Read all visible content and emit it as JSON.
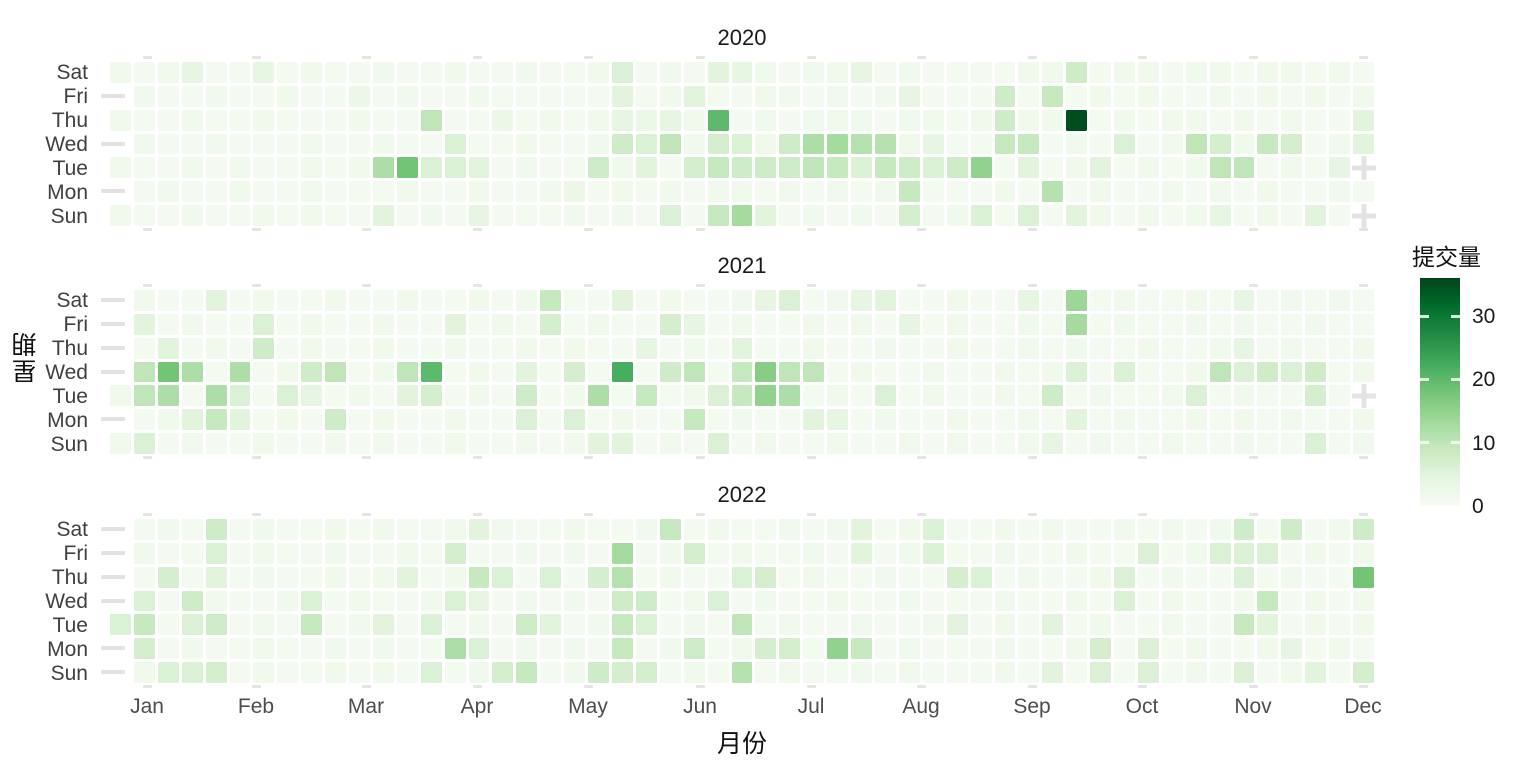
{
  "figure": {
    "y_axis_title": "星期",
    "x_axis_title": "月份",
    "weekday_labels": [
      "Sat",
      "Fri",
      "Thu",
      "Wed",
      "Tue",
      "Mon",
      "Sun"
    ],
    "month_labels": [
      "Jan",
      "Feb",
      "Mar",
      "Apr",
      "May",
      "Jun",
      "Jul",
      "Aug",
      "Sep",
      "Oct",
      "Nov",
      "Dec"
    ],
    "legend": {
      "title": "提交量",
      "tick_values": [
        30,
        20,
        10,
        0
      ],
      "tick_labels": [
        "30",
        "20",
        "10",
        "0"
      ],
      "domain_min": 0,
      "domain_max": 36,
      "palette": [
        "#f7fcf5",
        "#e5f5e0",
        "#c7e9c0",
        "#a1d99b",
        "#74c476",
        "#41ab5d",
        "#238b45",
        "#006d2c",
        "#00441b"
      ]
    }
  },
  "chart_data": {
    "type": "heatmap",
    "facet_titles": [
      "2020",
      "2021",
      "2022"
    ],
    "rows": [
      "Sat",
      "Fri",
      "Thu",
      "Wed",
      "Tue",
      "Mon",
      "Sun"
    ],
    "columns": "weeks 1-53 of each year",
    "xlabel": "月份",
    "ylabel": "星期",
    "colorbar": {
      "title": "提交量",
      "range": [
        0,
        36
      ],
      "ticks": [
        0,
        10,
        20,
        30
      ]
    },
    "missing_marker": "+",
    "series": [
      {
        "name": "2020",
        "values": [
          [
            2,
            1,
            2,
            4,
            1,
            1,
            4,
            1,
            2,
            1,
            1,
            2,
            1,
            1,
            2,
            1,
            1,
            2,
            1,
            1,
            2,
            6,
            1,
            2,
            1,
            5,
            4,
            2,
            1,
            2,
            2,
            4,
            1,
            2,
            1,
            1,
            1,
            1,
            2,
            2,
            8,
            1,
            2,
            2,
            1,
            2,
            2,
            1,
            2,
            2,
            1,
            2,
            1
          ],
          [
            null,
            2,
            1,
            1,
            2,
            1,
            1,
            2,
            1,
            1,
            3,
            1,
            2,
            1,
            1,
            2,
            1,
            1,
            1,
            1,
            1,
            5,
            1,
            2,
            5,
            1,
            1,
            2,
            2,
            1,
            2,
            1,
            2,
            4,
            1,
            1,
            1,
            8,
            1,
            9,
            1,
            2,
            1,
            2,
            1,
            1,
            2,
            1,
            2,
            1,
            2,
            1,
            2
          ],
          [
            2,
            1,
            1,
            2,
            1,
            1,
            2,
            1,
            1,
            1,
            2,
            1,
            1,
            10,
            1,
            1,
            3,
            1,
            2,
            1,
            2,
            4,
            3,
            4,
            2,
            20,
            1,
            2,
            1,
            2,
            2,
            2,
            1,
            2,
            2,
            1,
            2,
            8,
            2,
            2,
            35,
            1,
            2,
            1,
            2,
            2,
            1,
            2,
            1,
            2,
            1,
            1,
            5
          ],
          [
            null,
            2,
            1,
            1,
            2,
            1,
            1,
            1,
            2,
            1,
            1,
            2,
            1,
            1,
            6,
            1,
            1,
            2,
            1,
            1,
            2,
            8,
            6,
            10,
            2,
            7,
            6,
            2,
            8,
            12,
            13,
            11,
            11,
            2,
            4,
            1,
            1,
            9,
            9,
            1,
            2,
            1,
            6,
            1,
            2,
            10,
            7,
            2,
            9,
            7,
            1,
            2,
            5
          ],
          [
            2,
            1,
            1,
            2,
            1,
            2,
            1,
            1,
            2,
            1,
            2,
            12,
            18,
            6,
            6,
            5,
            1,
            2,
            1,
            1,
            8,
            2,
            5,
            1,
            7,
            9,
            8,
            8,
            8,
            10,
            9,
            6,
            9,
            8,
            6,
            8,
            15,
            1,
            5,
            1,
            2,
            5,
            1,
            2,
            1,
            2,
            10,
            10,
            1,
            2,
            1,
            4,
            null
          ],
          [
            null,
            1,
            2,
            1,
            1,
            2,
            1,
            1,
            2,
            1,
            1,
            1,
            2,
            1,
            1,
            2,
            1,
            1,
            2,
            3,
            1,
            2,
            1,
            2,
            1,
            2,
            2,
            1,
            2,
            1,
            2,
            1,
            2,
            9,
            1,
            1,
            1,
            2,
            1,
            11,
            1,
            2,
            1,
            1,
            2,
            1,
            2,
            1,
            2,
            1,
            1,
            2,
            1
          ],
          [
            2,
            1,
            1,
            2,
            1,
            1,
            2,
            1,
            2,
            1,
            1,
            5,
            1,
            2,
            1,
            4,
            1,
            1,
            1,
            2,
            1,
            2,
            1,
            6,
            1,
            9,
            13,
            5,
            1,
            2,
            1,
            2,
            1,
            7,
            1,
            2,
            6,
            1,
            6,
            1,
            5,
            2,
            1,
            2,
            1,
            2,
            4,
            1,
            2,
            1,
            5,
            1,
            null
          ]
        ]
      },
      {
        "name": "2021",
        "values": [
          [
            null,
            2,
            1,
            1,
            5,
            1,
            2,
            1,
            1,
            2,
            1,
            1,
            2,
            1,
            1,
            2,
            1,
            2,
            9,
            1,
            1,
            5,
            1,
            2,
            1,
            1,
            2,
            4,
            6,
            1,
            2,
            4,
            5,
            1,
            1,
            2,
            1,
            1,
            4,
            1,
            14,
            1,
            2,
            1,
            1,
            2,
            1,
            4,
            1,
            2,
            1,
            2,
            1
          ],
          [
            null,
            5,
            1,
            2,
            1,
            1,
            6,
            1,
            2,
            1,
            1,
            2,
            1,
            1,
            5,
            1,
            2,
            1,
            7,
            1,
            2,
            1,
            1,
            7,
            4,
            1,
            2,
            1,
            1,
            2,
            1,
            2,
            1,
            4,
            1,
            2,
            1,
            1,
            2,
            1,
            13,
            1,
            2,
            1,
            1,
            2,
            1,
            2,
            1,
            1,
            2,
            1,
            1
          ],
          [
            null,
            1,
            5,
            1,
            2,
            1,
            8,
            1,
            2,
            1,
            1,
            2,
            1,
            1,
            2,
            1,
            1,
            2,
            1,
            2,
            1,
            1,
            4,
            1,
            2,
            1,
            5,
            1,
            1,
            2,
            1,
            1,
            2,
            1,
            1,
            2,
            1,
            1,
            2,
            1,
            2,
            1,
            1,
            2,
            1,
            1,
            2,
            4,
            1,
            2,
            1,
            1,
            2
          ],
          [
            null,
            10,
            18,
            12,
            1,
            12,
            1,
            2,
            8,
            10,
            1,
            2,
            10,
            20,
            1,
            2,
            1,
            5,
            1,
            7,
            1,
            22,
            1,
            8,
            10,
            1,
            9,
            16,
            10,
            10,
            1,
            2,
            1,
            1,
            2,
            1,
            1,
            2,
            1,
            2,
            6,
            1,
            6,
            1,
            1,
            2,
            10,
            6,
            8,
            6,
            8,
            1,
            2
          ],
          [
            2,
            10,
            12,
            1,
            12,
            6,
            1,
            6,
            4,
            1,
            2,
            1,
            5,
            7,
            1,
            2,
            1,
            8,
            1,
            2,
            12,
            1,
            9,
            1,
            2,
            6,
            9,
            15,
            12,
            1,
            2,
            1,
            6,
            1,
            2,
            1,
            1,
            2,
            1,
            8,
            1,
            2,
            1,
            1,
            2,
            6,
            1,
            2,
            1,
            1,
            7,
            1,
            null
          ],
          [
            null,
            1,
            2,
            5,
            9,
            5,
            1,
            2,
            1,
            8,
            1,
            2,
            1,
            1,
            2,
            1,
            1,
            6,
            1,
            6,
            1,
            2,
            1,
            1,
            9,
            1,
            2,
            1,
            1,
            5,
            4,
            1,
            2,
            1,
            1,
            2,
            1,
            1,
            2,
            1,
            5,
            1,
            2,
            1,
            1,
            2,
            1,
            2,
            1,
            2,
            1,
            1,
            2
          ],
          [
            2,
            6,
            1,
            2,
            1,
            1,
            2,
            1,
            1,
            2,
            1,
            2,
            1,
            1,
            2,
            1,
            1,
            2,
            1,
            2,
            5,
            5,
            1,
            2,
            1,
            6,
            1,
            2,
            1,
            1,
            2,
            1,
            1,
            2,
            1,
            2,
            1,
            1,
            2,
            4,
            1,
            2,
            1,
            1,
            2,
            1,
            1,
            2,
            1,
            1,
            6,
            1,
            2
          ]
        ]
      },
      {
        "name": "2022",
        "values": [
          [
            null,
            1,
            2,
            1,
            8,
            1,
            2,
            1,
            1,
            2,
            1,
            2,
            1,
            1,
            2,
            5,
            2,
            1,
            1,
            2,
            1,
            1,
            2,
            9,
            1,
            2,
            1,
            1,
            2,
            1,
            2,
            5,
            1,
            2,
            6,
            1,
            1,
            2,
            1,
            2,
            1,
            1,
            2,
            1,
            2,
            1,
            2,
            8,
            1,
            8,
            1,
            2,
            8
          ],
          [
            null,
            2,
            1,
            1,
            6,
            1,
            2,
            1,
            1,
            2,
            1,
            1,
            2,
            1,
            7,
            1,
            1,
            2,
            1,
            2,
            1,
            13,
            1,
            2,
            7,
            1,
            2,
            1,
            1,
            2,
            1,
            5,
            1,
            2,
            6,
            1,
            1,
            2,
            1,
            1,
            2,
            1,
            1,
            6,
            1,
            2,
            6,
            6,
            6,
            1,
            2,
            1,
            2
          ],
          [
            null,
            1,
            7,
            1,
            5,
            1,
            2,
            1,
            1,
            2,
            1,
            2,
            5,
            1,
            2,
            9,
            6,
            1,
            6,
            1,
            7,
            11,
            1,
            2,
            1,
            1,
            6,
            7,
            1,
            2,
            1,
            1,
            2,
            1,
            1,
            7,
            6,
            1,
            2,
            1,
            1,
            2,
            6,
            1,
            2,
            1,
            1,
            6,
            1,
            2,
            1,
            1,
            18
          ],
          [
            null,
            6,
            1,
            8,
            2,
            1,
            1,
            2,
            6,
            1,
            2,
            1,
            1,
            2,
            6,
            4,
            1,
            2,
            1,
            2,
            1,
            8,
            8,
            1,
            2,
            6,
            1,
            2,
            1,
            1,
            2,
            1,
            1,
            2,
            1,
            1,
            1,
            2,
            1,
            1,
            2,
            1,
            6,
            1,
            2,
            1,
            1,
            2,
            9,
            1,
            2,
            1,
            2
          ],
          [
            6,
            9,
            1,
            6,
            8,
            1,
            2,
            1,
            9,
            1,
            2,
            5,
            1,
            6,
            1,
            2,
            1,
            8,
            5,
            1,
            2,
            9,
            6,
            1,
            2,
            1,
            10,
            1,
            2,
            1,
            1,
            2,
            1,
            1,
            2,
            5,
            1,
            2,
            1,
            5,
            1,
            2,
            1,
            1,
            2,
            1,
            1,
            9,
            5,
            1,
            2,
            1,
            2
          ],
          [
            null,
            7,
            1,
            2,
            1,
            1,
            2,
            1,
            1,
            2,
            1,
            2,
            1,
            1,
            12,
            6,
            1,
            2,
            1,
            2,
            1,
            9,
            1,
            2,
            8,
            1,
            2,
            7,
            7,
            1,
            15,
            9,
            1,
            2,
            1,
            1,
            1,
            2,
            1,
            1,
            2,
            7,
            1,
            6,
            1,
            2,
            1,
            1,
            2,
            4,
            1,
            2,
            1
          ],
          [
            null,
            2,
            6,
            6,
            7,
            1,
            2,
            1,
            1,
            2,
            1,
            2,
            1,
            6,
            1,
            2,
            7,
            9,
            1,
            2,
            8,
            7,
            7,
            1,
            2,
            1,
            11,
            1,
            2,
            1,
            1,
            2,
            1,
            2,
            1,
            1,
            1,
            2,
            1,
            5,
            1,
            6,
            1,
            6,
            1,
            2,
            1,
            6,
            1,
            2,
            5,
            1,
            7
          ]
        ]
      }
    ]
  }
}
